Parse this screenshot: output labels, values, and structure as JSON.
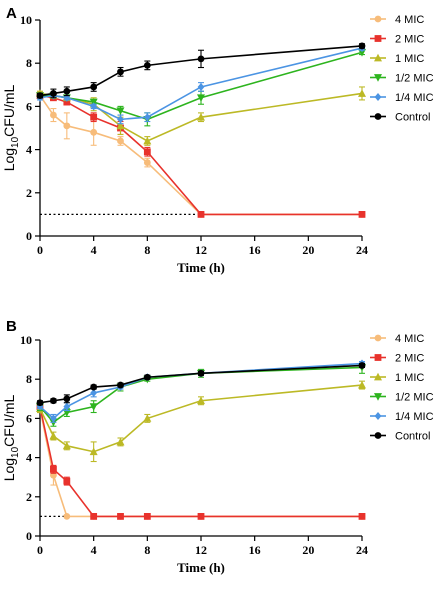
{
  "chart_data": [
    {
      "panel": "A",
      "type": "line",
      "xlabel": "Time (h)",
      "ylabel_prefix": "Log",
      "ylabel_sub": "10",
      "ylabel_suffix": "CFU/mL",
      "xlim": [
        0,
        24
      ],
      "ylim": [
        0,
        10
      ],
      "xticks": [
        0,
        4,
        8,
        12,
        16,
        20,
        24
      ],
      "yticks": [
        0,
        2,
        4,
        6,
        8,
        10
      ],
      "grid": false,
      "legend_position": "right",
      "detection_limit": {
        "y": 1,
        "x_range": [
          0,
          12
        ]
      },
      "series": [
        {
          "name": "4 MIC",
          "color": "#F7BC7A",
          "marker": "circle",
          "x": [
            0,
            1,
            2,
            4,
            6,
            8,
            12,
            24
          ],
          "y": [
            6.5,
            5.6,
            5.1,
            4.8,
            4.4,
            3.4,
            1.0,
            1.0
          ],
          "err": [
            0.2,
            0.3,
            0.6,
            0.6,
            0.2,
            0.2,
            0.05,
            0.05
          ]
        },
        {
          "name": "2 MIC",
          "color": "#E8322C",
          "marker": "square",
          "x": [
            0,
            1,
            2,
            4,
            6,
            8,
            12,
            24
          ],
          "y": [
            6.5,
            6.4,
            6.2,
            5.5,
            5.0,
            3.9,
            1.0,
            1.0
          ],
          "err": [
            0.1,
            0.1,
            0.1,
            0.2,
            0.3,
            0.2,
            0.05,
            0.05
          ]
        },
        {
          "name": "1 MIC",
          "color": "#BCB925",
          "marker": "triangle-up",
          "x": [
            0,
            1,
            2,
            4,
            6,
            8,
            12,
            24
          ],
          "y": [
            6.6,
            6.5,
            6.4,
            6.1,
            5.1,
            4.4,
            5.5,
            6.6
          ],
          "err": [
            0.1,
            0.1,
            0.1,
            0.3,
            0.4,
            0.2,
            0.2,
            0.3
          ]
        },
        {
          "name": "1/2 MIC",
          "color": "#2DB41E",
          "marker": "triangle-down",
          "x": [
            0,
            1,
            2,
            4,
            6,
            8,
            12,
            24
          ],
          "y": [
            6.5,
            6.5,
            6.4,
            6.2,
            5.8,
            5.4,
            6.4,
            8.5
          ],
          "err": [
            0.1,
            0.1,
            0.1,
            0.1,
            0.2,
            0.3,
            0.3,
            0.1
          ]
        },
        {
          "name": "1/4 MIC",
          "color": "#4B94E3",
          "marker": "diamond",
          "x": [
            0,
            1,
            2,
            4,
            6,
            8,
            12,
            24
          ],
          "y": [
            6.4,
            6.5,
            6.4,
            6.0,
            5.4,
            5.5,
            6.9,
            8.7
          ],
          "err": [
            0.1,
            0.1,
            0.1,
            0.1,
            0.2,
            0.2,
            0.2,
            0.1
          ]
        },
        {
          "name": "Control",
          "color": "#000000",
          "marker": "circle",
          "x": [
            0,
            1,
            2,
            4,
            6,
            8,
            12,
            24
          ],
          "y": [
            6.5,
            6.6,
            6.7,
            6.9,
            7.6,
            7.9,
            8.2,
            8.8
          ],
          "err": [
            0.1,
            0.2,
            0.2,
            0.2,
            0.2,
            0.2,
            0.4,
            0.1
          ]
        }
      ]
    },
    {
      "panel": "B",
      "type": "line",
      "xlabel": "Time (h)",
      "ylabel_prefix": "Log",
      "ylabel_sub": "10",
      "ylabel_suffix": "CFU/mL",
      "xlim": [
        0,
        24
      ],
      "ylim": [
        0,
        10
      ],
      "xticks": [
        0,
        4,
        8,
        12,
        16,
        20,
        24
      ],
      "yticks": [
        0,
        2,
        4,
        6,
        8,
        10
      ],
      "grid": false,
      "legend_position": "right",
      "detection_limit": {
        "y": 1,
        "x_range": [
          0,
          2
        ]
      },
      "series": [
        {
          "name": "4 MIC",
          "color": "#F7BC7A",
          "marker": "circle",
          "x": [
            0,
            1,
            2,
            4,
            6,
            8,
            12,
            24
          ],
          "y": [
            6.5,
            3.1,
            1.0,
            1.0,
            1.0,
            1.0,
            1.0,
            1.0
          ],
          "err": [
            0.2,
            0.5,
            0.05,
            0.05,
            0.05,
            0.05,
            0.05,
            0.05
          ]
        },
        {
          "name": "2 MIC",
          "color": "#E8322C",
          "marker": "square",
          "x": [
            0,
            1,
            2,
            4,
            6,
            8,
            12,
            24
          ],
          "y": [
            6.6,
            3.4,
            2.8,
            1.0,
            1.0,
            1.0,
            1.0,
            1.0
          ],
          "err": [
            0.2,
            0.2,
            0.2,
            0.05,
            0.05,
            0.05,
            0.05,
            0.05
          ]
        },
        {
          "name": "1 MIC",
          "color": "#BCB925",
          "marker": "triangle-up",
          "x": [
            0,
            1,
            2,
            4,
            6,
            8,
            12,
            24
          ],
          "y": [
            6.5,
            5.1,
            4.6,
            4.3,
            4.8,
            6.0,
            6.9,
            7.7
          ],
          "err": [
            0.2,
            0.2,
            0.2,
            0.5,
            0.2,
            0.2,
            0.2,
            0.2
          ]
        },
        {
          "name": "1/2 MIC",
          "color": "#2DB41E",
          "marker": "triangle-down",
          "x": [
            0,
            1,
            2,
            4,
            6,
            8,
            12,
            24
          ],
          "y": [
            6.6,
            5.8,
            6.3,
            6.6,
            7.6,
            8.0,
            8.3,
            8.6
          ],
          "err": [
            0.2,
            0.2,
            0.2,
            0.3,
            0.2,
            0.1,
            0.2,
            0.3
          ]
        },
        {
          "name": "1/4 MIC",
          "color": "#4B94E3",
          "marker": "diamond",
          "x": [
            0,
            1,
            2,
            4,
            6,
            8,
            12,
            24
          ],
          "y": [
            6.6,
            6.0,
            6.6,
            7.3,
            7.6,
            8.1,
            8.3,
            8.8
          ],
          "err": [
            0.1,
            0.2,
            0.2,
            0.2,
            0.1,
            0.1,
            0.1,
            0.1
          ]
        },
        {
          "name": "Control",
          "color": "#000000",
          "marker": "circle",
          "x": [
            0,
            1,
            2,
            4,
            6,
            8,
            12,
            24
          ],
          "y": [
            6.8,
            6.9,
            7.0,
            7.6,
            7.7,
            8.1,
            8.3,
            8.7
          ],
          "err": [
            0.1,
            0.1,
            0.2,
            0.1,
            0.1,
            0.1,
            0.1,
            0.1
          ]
        }
      ]
    }
  ]
}
